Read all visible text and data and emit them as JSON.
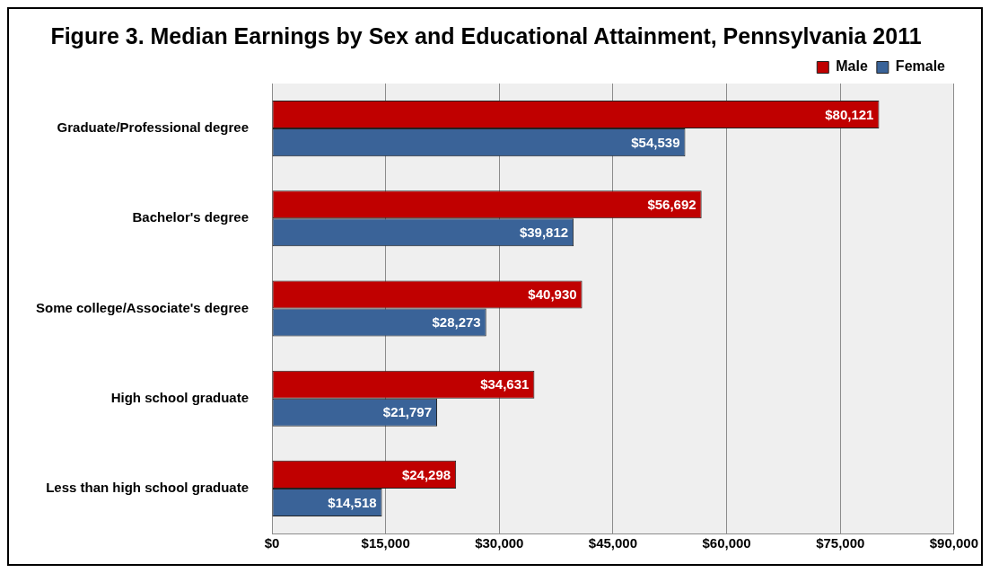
{
  "chart_data": {
    "type": "bar",
    "orientation": "horizontal",
    "title": "Figure 3. Median Earnings by Sex and Educational Attainment, Pennsylvania 2011",
    "categories": [
      "Graduate/Professional degree",
      "Bachelor's degree",
      "Some college/Associate's degree",
      "High school graduate",
      "Less than high school graduate"
    ],
    "series": [
      {
        "name": "Male",
        "color": "#c00000",
        "values": [
          80121,
          56692,
          40930,
          34631,
          24298
        ],
        "value_labels": [
          "$80,121",
          "$56,692",
          "$40,930",
          "$34,631",
          "$24,298"
        ]
      },
      {
        "name": "Female",
        "color": "#3a6398",
        "values": [
          54539,
          39812,
          28273,
          21797,
          14518
        ],
        "value_labels": [
          "$54,539",
          "$39,812",
          "$28,273",
          "$21,797",
          "$14,518"
        ]
      }
    ],
    "xlim": [
      0,
      90000
    ],
    "xticks": [
      {
        "value": 0,
        "label": "$0"
      },
      {
        "value": 15000,
        "label": "$15,000"
      },
      {
        "value": 30000,
        "label": "$30,000"
      },
      {
        "value": 45000,
        "label": "$45,000"
      },
      {
        "value": 60000,
        "label": "$60,000"
      },
      {
        "value": 75000,
        "label": "$75,000"
      },
      {
        "value": 90000,
        "label": "$90,000"
      }
    ],
    "grid": "x",
    "legend": "top right"
  }
}
